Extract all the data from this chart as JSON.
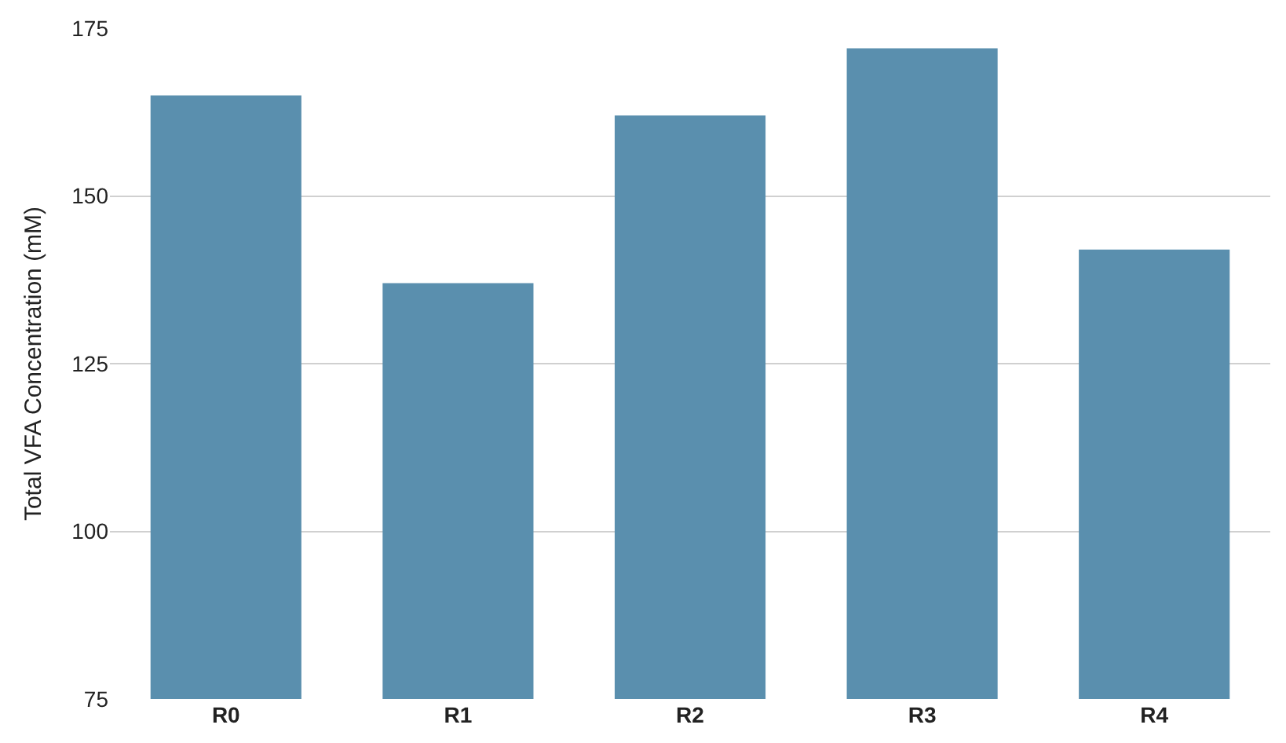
{
  "chart_data": {
    "type": "bar",
    "ylabel": "Total VFA Concentration (mM)",
    "categories": [
      "R0",
      "R1",
      "R2",
      "R3",
      "R4"
    ],
    "values": [
      165,
      137,
      162,
      172,
      142
    ],
    "color": "#5a8fae",
    "ylim": [
      75,
      175
    ],
    "yticks": [
      75,
      100,
      125,
      150,
      175
    ],
    "grid": "y"
  }
}
